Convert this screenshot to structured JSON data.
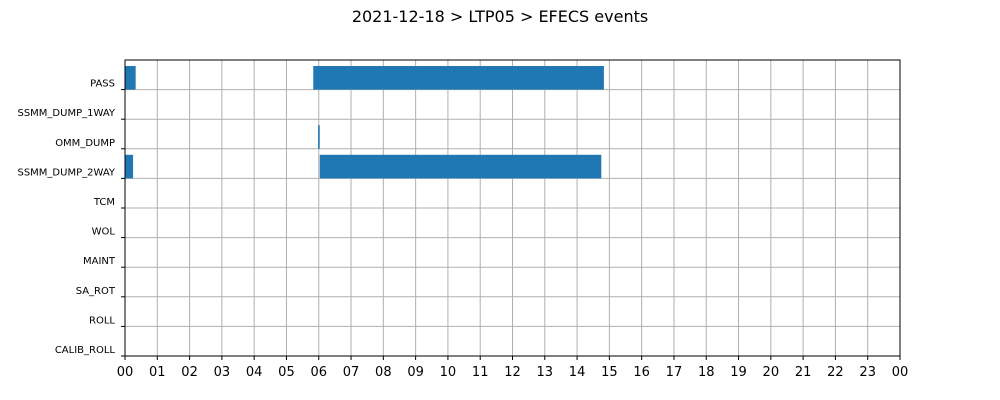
{
  "chart_data": {
    "type": "bar",
    "orientation": "horizontal",
    "title": "2021-12-18 > LTP05 > EFECS events",
    "xlabel": "",
    "ylabel": "",
    "x_unit": "hour",
    "xlim": [
      0,
      24
    ],
    "x_tick_labels": [
      "00",
      "01",
      "02",
      "03",
      "04",
      "05",
      "06",
      "07",
      "08",
      "09",
      "10",
      "11",
      "12",
      "13",
      "14",
      "15",
      "16",
      "17",
      "18",
      "19",
      "20",
      "21",
      "22",
      "23",
      "00"
    ],
    "categories": [
      "PASS",
      "SSMM_DUMP_1WAY",
      "OMM_DUMP",
      "SSMM_DUMP_2WAY",
      "TCM",
      "WOL",
      "MAINT",
      "SA_ROT",
      "ROLL",
      "CALIB_ROLL"
    ],
    "grid": true,
    "color": "#1f77b4",
    "events": [
      {
        "category": "PASS",
        "start": 0.0,
        "end": 0.33
      },
      {
        "category": "PASS",
        "start": 5.83,
        "end": 14.83
      },
      {
        "category": "OMM_DUMP",
        "start": 5.98,
        "end": 6.03
      },
      {
        "category": "SSMM_DUMP_2WAY",
        "start": 0.0,
        "end": 0.25
      },
      {
        "category": "SSMM_DUMP_2WAY",
        "start": 6.03,
        "end": 14.75
      }
    ]
  }
}
